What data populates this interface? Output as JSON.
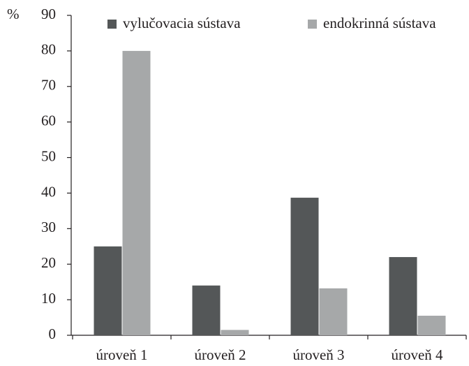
{
  "chart_data": {
    "type": "bar",
    "y_label": "%",
    "categories": [
      "úroveň 1",
      "úroveň 2",
      "úroveň 3",
      "úroveň 4"
    ],
    "series": [
      {
        "name": "vylučovacia sústava",
        "color": "#545758",
        "values": [
          25,
          14,
          38.7,
          22
        ]
      },
      {
        "name": "endokrinná sústava",
        "color": "#a6a8a9",
        "values": [
          80,
          1.5,
          13.2,
          5.5
        ]
      }
    ],
    "ylim": [
      0,
      90
    ],
    "yticks": [
      0,
      10,
      20,
      30,
      40,
      50,
      60,
      70,
      80,
      90
    ],
    "legend": "top",
    "grid": false
  }
}
